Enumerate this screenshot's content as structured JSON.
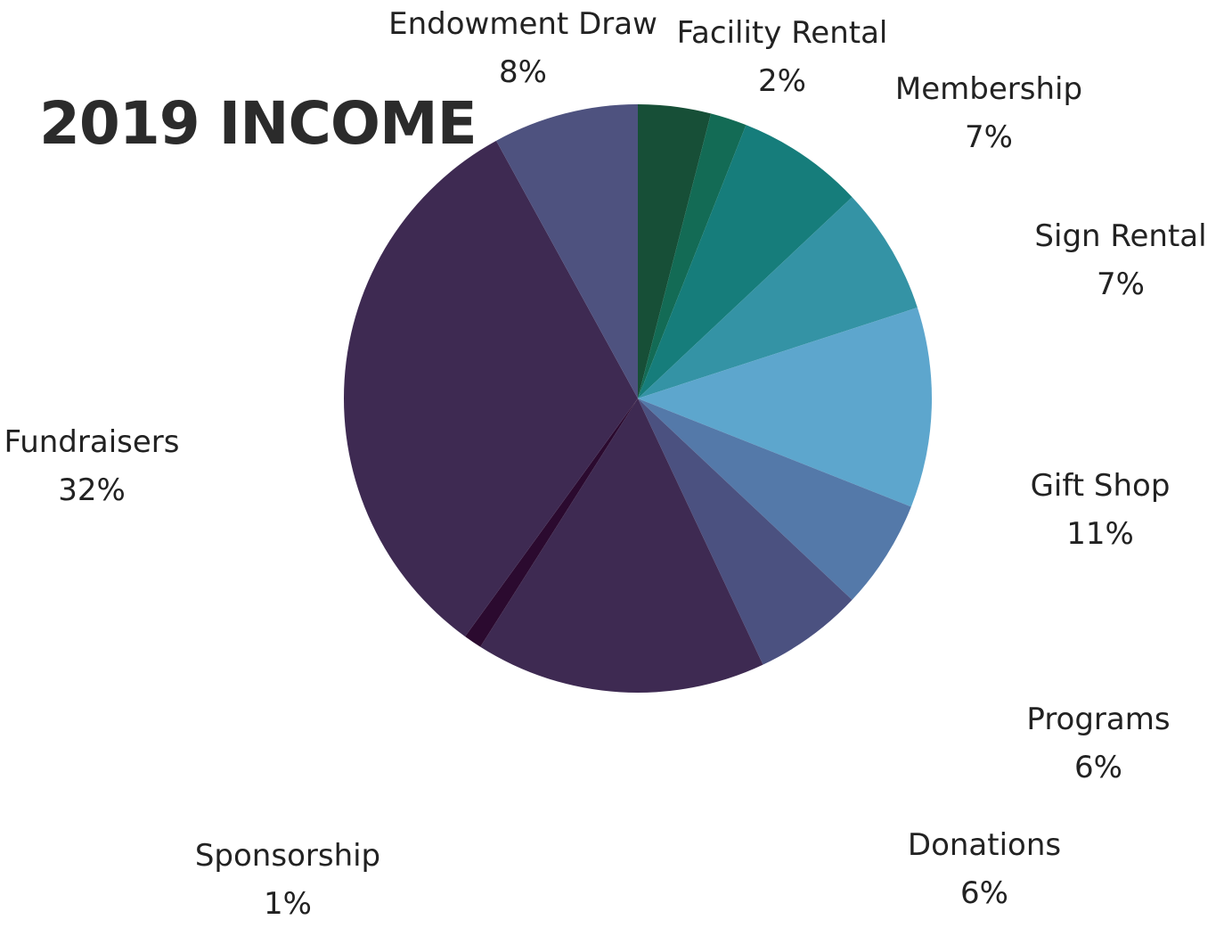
{
  "chart_data": {
    "type": "pie",
    "title": "2019 INCOME",
    "slices": [
      {
        "label": "",
        "value": 4,
        "percent_label": "",
        "color": "#174f37"
      },
      {
        "label": "Facility Rental",
        "value": 2,
        "percent_label": "2%",
        "color": "#136b55"
      },
      {
        "label": "Membership",
        "value": 7,
        "percent_label": "7%",
        "color": "#167d7b"
      },
      {
        "label": "Sign Rental",
        "value": 7,
        "percent_label": "7%",
        "color": "#3493a5"
      },
      {
        "label": "Gift Shop",
        "value": 11,
        "percent_label": "11%",
        "color": "#5da6cd"
      },
      {
        "label": "Programs",
        "value": 6,
        "percent_label": "6%",
        "color": "#5479a9"
      },
      {
        "label": "Donations",
        "value": 6,
        "percent_label": "6%",
        "color": "#4b5180"
      },
      {
        "label": "",
        "value": 16,
        "percent_label": "",
        "color": "#3e2a52"
      },
      {
        "label": "Sponsorship",
        "value": 1,
        "percent_label": "1%",
        "color": "#2b0a2f"
      },
      {
        "label": "Fundraisers",
        "value": 32,
        "percent_label": "32%",
        "color": "#3e2a52"
      },
      {
        "label": "Endowment Draw",
        "value": 8,
        "percent_label": "8%",
        "color": "#4e527f"
      }
    ]
  }
}
